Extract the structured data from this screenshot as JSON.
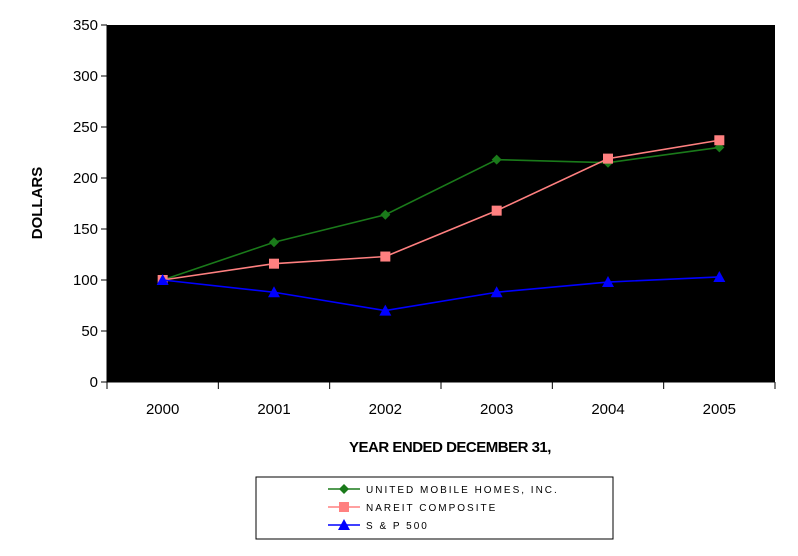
{
  "chart_data": {
    "type": "line",
    "title": "",
    "xlabel": "YEAR ENDED DECEMBER 31,",
    "ylabel": "DOLLARS",
    "categories": [
      "2000",
      "2001",
      "2002",
      "2003",
      "2004",
      "2005"
    ],
    "ylim": [
      0,
      350
    ],
    "yticks": [
      0,
      50,
      100,
      150,
      200,
      250,
      300,
      350
    ],
    "grid": false,
    "plot_background": "#000000",
    "legend_position": "bottom",
    "series": [
      {
        "name": "UNITED MOBILE HOMES, INC.",
        "values": [
          100,
          137,
          164,
          218,
          215,
          230
        ],
        "color": "#1a7a1a",
        "marker": "diamond"
      },
      {
        "name": "NAREIT COMPOSITE",
        "values": [
          100,
          116,
          123,
          168,
          219,
          237
        ],
        "color": "#ff8080",
        "marker": "square"
      },
      {
        "name": "S & P 500",
        "values": [
          100,
          88,
          70,
          88,
          98,
          103
        ],
        "color": "#0000ff",
        "marker": "triangle"
      }
    ]
  }
}
